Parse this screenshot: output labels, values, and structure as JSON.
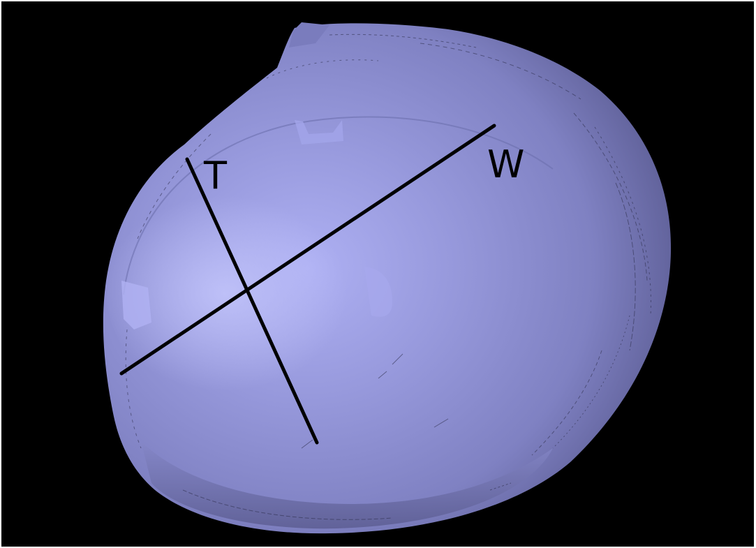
{
  "labels": {
    "t": "T",
    "w": "W"
  },
  "colors": {
    "background": "#000000",
    "surface_light": "#b4b6f6",
    "surface_mid": "#8c8ed0",
    "surface_dark": "#4a4b78",
    "measurement_line": "#000000"
  }
}
